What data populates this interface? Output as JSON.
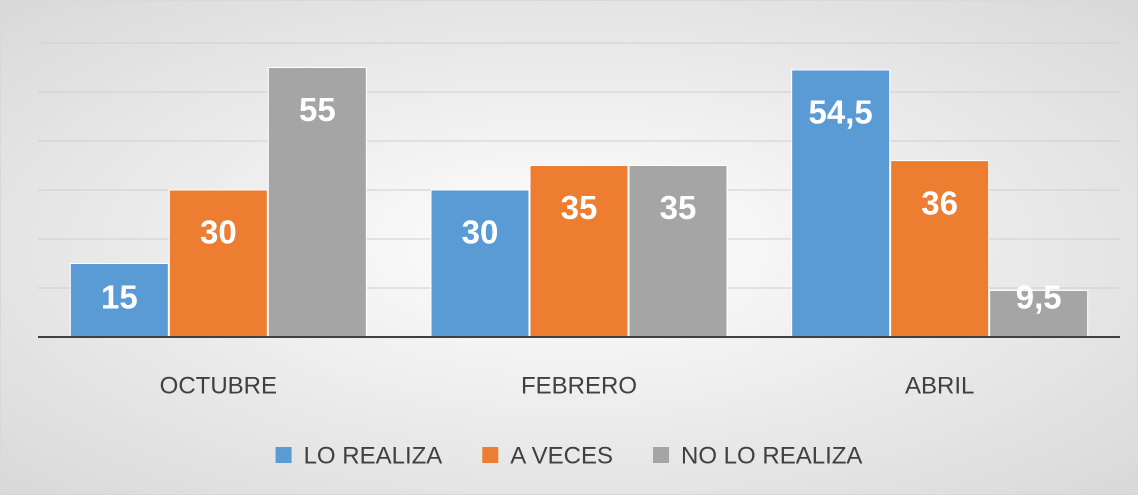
{
  "chart_data": {
    "type": "bar",
    "categories": [
      "OCTUBRE",
      "FEBRERO",
      "ABRIL"
    ],
    "series": [
      {
        "name": "LO REALIZA",
        "color": "#5b9bd5",
        "values": [
          15,
          30,
          54.5
        ],
        "value_labels": [
          "15",
          "30",
          "54,5"
        ]
      },
      {
        "name": "A VECES",
        "color": "#ed7d31",
        "values": [
          30,
          35,
          36
        ],
        "value_labels": [
          "30",
          "35",
          "36"
        ]
      },
      {
        "name": "NO LO REALIZA",
        "color": "#a5a5a5",
        "values": [
          55,
          35,
          9.5
        ],
        "value_labels": [
          "55",
          "35",
          "9,5"
        ]
      }
    ],
    "ylim": [
      0,
      60
    ],
    "yticks": [
      0,
      10,
      20,
      30,
      40,
      50,
      60
    ],
    "grid": true,
    "legend": "bottom"
  }
}
